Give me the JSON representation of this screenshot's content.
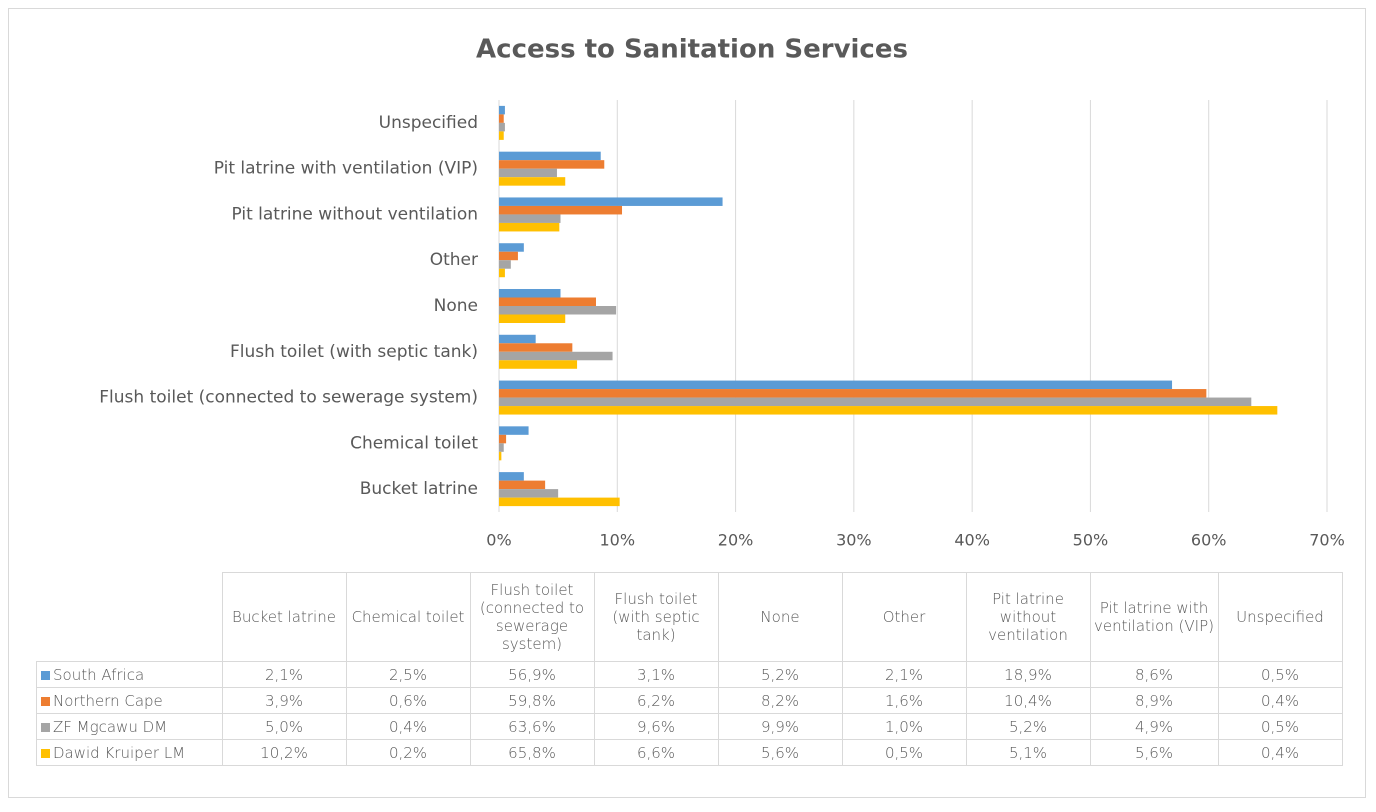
{
  "chart_data": {
    "type": "bar",
    "orientation": "horizontal",
    "title": "Access to Sanitation Services",
    "categories": [
      "Bucket latrine",
      "Chemical toilet",
      "Flush toilet (connected to sewerage system)",
      "Flush toilet (with septic tank)",
      "None",
      "Other",
      "Pit latrine without ventilation",
      "Pit latrine with ventilation (VIP)",
      "Unspecified"
    ],
    "series": [
      {
        "name": "South Africa",
        "color": "#5b9bd5",
        "values": [
          2.1,
          2.5,
          56.9,
          3.1,
          5.2,
          2.1,
          18.9,
          8.6,
          0.5
        ],
        "value_labels": [
          "2,1%",
          "2,5%",
          "56,9%",
          "3,1%",
          "5,2%",
          "2,1%",
          "18,9%",
          "8,6%",
          "0,5%"
        ]
      },
      {
        "name": "Northern Cape",
        "color": "#ed7d31",
        "values": [
          3.9,
          0.6,
          59.8,
          6.2,
          8.2,
          1.6,
          10.4,
          8.9,
          0.4
        ],
        "value_labels": [
          "3,9%",
          "0,6%",
          "59,8%",
          "6,2%",
          "8,2%",
          "1,6%",
          "10,4%",
          "8,9%",
          "0,4%"
        ]
      },
      {
        "name": "ZF Mgcawu DM",
        "color": "#a5a5a5",
        "values": [
          5.0,
          0.4,
          63.6,
          9.6,
          9.9,
          1.0,
          5.2,
          4.9,
          0.5
        ],
        "value_labels": [
          "5,0%",
          "0,4%",
          "63,6%",
          "9,6%",
          "9,9%",
          "1,0%",
          "5,2%",
          "4,9%",
          "0,5%"
        ]
      },
      {
        "name": "Dawid Kruiper LM",
        "color": "#ffc000",
        "values": [
          10.2,
          0.2,
          65.8,
          6.6,
          5.6,
          0.5,
          5.1,
          5.6,
          0.4
        ],
        "value_labels": [
          "10,2%",
          "0,2%",
          "65,8%",
          "6,6%",
          "5,6%",
          "0,5%",
          "5,1%",
          "5,6%",
          "0,4%"
        ]
      }
    ],
    "xlim": [
      0,
      70
    ],
    "xticks": [
      {
        "value": 0,
        "label": "0%"
      },
      {
        "value": 10,
        "label": "10%"
      },
      {
        "value": 20,
        "label": "20%"
      },
      {
        "value": 30,
        "label": "30%"
      },
      {
        "value": 40,
        "label": "40%"
      },
      {
        "value": 50,
        "label": "50%"
      },
      {
        "value": 60,
        "label": "60%"
      },
      {
        "value": 70,
        "label": "70%"
      }
    ],
    "grid": true,
    "legend": "table"
  }
}
